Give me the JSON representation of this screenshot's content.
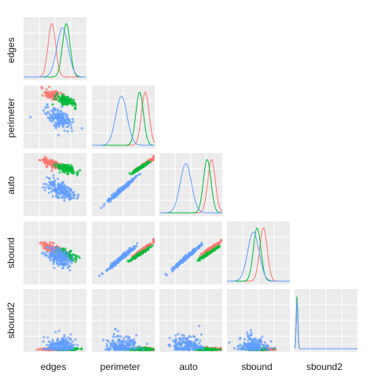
{
  "colors": {
    "group1": "#f8766d",
    "group2": "#00ba38",
    "group3": "#619cff",
    "panel": "#ebebeb",
    "grid": "#ffffff"
  },
  "labels": {
    "rows": [
      "edges",
      "perimeter",
      "auto",
      "sbound",
      "sbound2"
    ],
    "cols": [
      "edges",
      "perimeter",
      "auto",
      "sbound",
      "sbound2"
    ]
  },
  "chart_data": {
    "type": "scatter",
    "title": "",
    "variables": [
      "edges",
      "perimeter",
      "auto",
      "sbound",
      "sbound2"
    ],
    "layout": "lower-triangle pairs plot with density curves on diagonal",
    "axis_ticks": "none",
    "grid": true,
    "legend": "none",
    "groups": [
      {
        "color": "#f8766d",
        "means": {
          "edges": 0.45,
          "perimeter": 0.85,
          "auto": 0.83,
          "sbound": 0.58,
          "sbound2": 0.05
        }
      },
      {
        "color": "#00ba38",
        "means": {
          "edges": 0.68,
          "perimeter": 0.76,
          "auto": 0.76,
          "sbound": 0.48,
          "sbound2": 0.05
        }
      },
      {
        "color": "#619cff",
        "means": {
          "edges": 0.58,
          "perimeter": 0.47,
          "auto": 0.42,
          "sbound": 0.42,
          "sbound2": 0.07
        }
      }
    ],
    "diagonal_density": [
      {
        "variable": "edges",
        "peaks": [
          0.45,
          0.68,
          0.62
        ]
      },
      {
        "variable": "perimeter",
        "peaks": [
          0.85,
          0.76,
          0.47
        ]
      },
      {
        "variable": "auto",
        "peaks": [
          0.83,
          0.76,
          0.42
        ]
      },
      {
        "variable": "sbound",
        "peaks": [
          0.58,
          0.48,
          0.42
        ]
      },
      {
        "variable": "sbound2",
        "peaks": [
          0.04,
          0.04,
          0.04
        ]
      }
    ]
  }
}
